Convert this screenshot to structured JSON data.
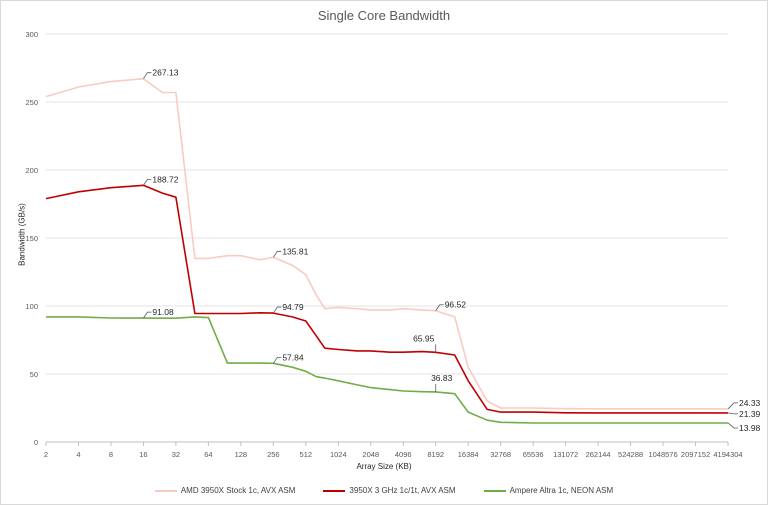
{
  "chart_data": {
    "type": "line",
    "title": "Single Core Bandwidth",
    "xlabel": "Array Size (KB)",
    "ylabel": "Bandwidth (GB/s)",
    "x_scale": "log2",
    "x_tick_labels": [
      "2",
      "4",
      "8",
      "16",
      "32",
      "64",
      "128",
      "256",
      "512",
      "1024",
      "2048",
      "4096",
      "8192",
      "16384",
      "32768",
      "65536",
      "131072",
      "262144",
      "524288",
      "1048576",
      "2097152",
      "4194304"
    ],
    "ylim": [
      0,
      300
    ],
    "y_ticks": [
      0,
      50,
      100,
      150,
      200,
      250,
      300
    ],
    "grid": "horizontal",
    "legend_position": "bottom",
    "series": [
      {
        "name": "AMD 3950X Stock 1c, AVX ASM",
        "color": "#f8cbc3",
        "x": [
          2,
          4,
          8,
          16,
          24,
          32,
          48,
          64,
          96,
          128,
          192,
          256,
          384,
          512,
          640,
          768,
          1024,
          1536,
          2048,
          3072,
          4096,
          6144,
          8192,
          12288,
          16384,
          24576,
          32768,
          65536,
          131072,
          262144,
          524288,
          1048576,
          2097152,
          4194304
        ],
        "y": [
          254,
          261,
          265,
          267.13,
          257,
          257,
          135,
          135,
          137,
          137,
          134,
          135.81,
          130,
          123,
          108,
          98,
          99,
          98,
          97,
          97,
          98,
          97,
          96.52,
          92,
          55,
          30,
          25,
          25,
          24.5,
          24.4,
          24.4,
          24.4,
          24.4,
          24.33
        ]
      },
      {
        "name": "3950X 3 GHz 1c/1t, AVX ASM",
        "color": "#c00000",
        "x": [
          2,
          4,
          8,
          16,
          24,
          32,
          48,
          64,
          96,
          128,
          192,
          256,
          384,
          512,
          640,
          768,
          1024,
          1536,
          2048,
          3072,
          4096,
          6144,
          8192,
          12288,
          16384,
          24576,
          32768,
          65536,
          131072,
          262144,
          524288,
          1048576,
          2097152,
          4194304
        ],
        "y": [
          179,
          184,
          187,
          188.72,
          183,
          180,
          94.5,
          94.5,
          94.5,
          94.5,
          95,
          94.79,
          92,
          89,
          78,
          69,
          68,
          67,
          67,
          66,
          66,
          66.5,
          65.95,
          64,
          45,
          24,
          22,
          22,
          21.5,
          21.4,
          21.4,
          21.4,
          21.4,
          21.39
        ]
      },
      {
        "name": "Ampere Altra 1c, NEON ASM",
        "color": "#70ad47",
        "x": [
          2,
          4,
          8,
          16,
          24,
          32,
          48,
          64,
          96,
          128,
          192,
          256,
          384,
          512,
          640,
          768,
          1024,
          1536,
          2048,
          3072,
          4096,
          6144,
          8192,
          12288,
          16384,
          24576,
          32768,
          65536,
          131072,
          262144,
          524288,
          1048576,
          2097152,
          4194304
        ],
        "y": [
          92,
          92,
          91.2,
          91.08,
          91,
          91,
          92,
          91.5,
          58,
          58,
          58,
          57.84,
          55,
          52,
          48,
          47,
          45,
          42,
          40,
          38.5,
          37.5,
          37,
          36.83,
          35.5,
          22,
          16,
          14.5,
          14,
          14,
          14,
          14,
          14,
          14,
          13.98
        ]
      }
    ],
    "annotations": [
      {
        "text": "267.13",
        "x": 16,
        "y": 267.13,
        "series": 0
      },
      {
        "text": "135.81",
        "x": 256,
        "y": 135.81,
        "series": 0
      },
      {
        "text": "96.52",
        "x": 8192,
        "y": 96.52,
        "series": 0
      },
      {
        "text": "24.33",
        "x": 4194304,
        "y": 24.33,
        "series": 0
      },
      {
        "text": "188.72",
        "x": 16,
        "y": 188.72,
        "series": 1
      },
      {
        "text": "94.79",
        "x": 256,
        "y": 94.79,
        "series": 1
      },
      {
        "text": "65.95",
        "x": 8192,
        "y": 65.95,
        "series": 1
      },
      {
        "text": "21.39",
        "x": 4194304,
        "y": 21.39,
        "series": 1
      },
      {
        "text": "91.08",
        "x": 16,
        "y": 91.08,
        "series": 2
      },
      {
        "text": "57.84",
        "x": 256,
        "y": 57.84,
        "series": 2
      },
      {
        "text": "36.83",
        "x": 8192,
        "y": 36.83,
        "series": 2
      },
      {
        "text": "13.98",
        "x": 4194304,
        "y": 13.98,
        "series": 2
      }
    ]
  }
}
